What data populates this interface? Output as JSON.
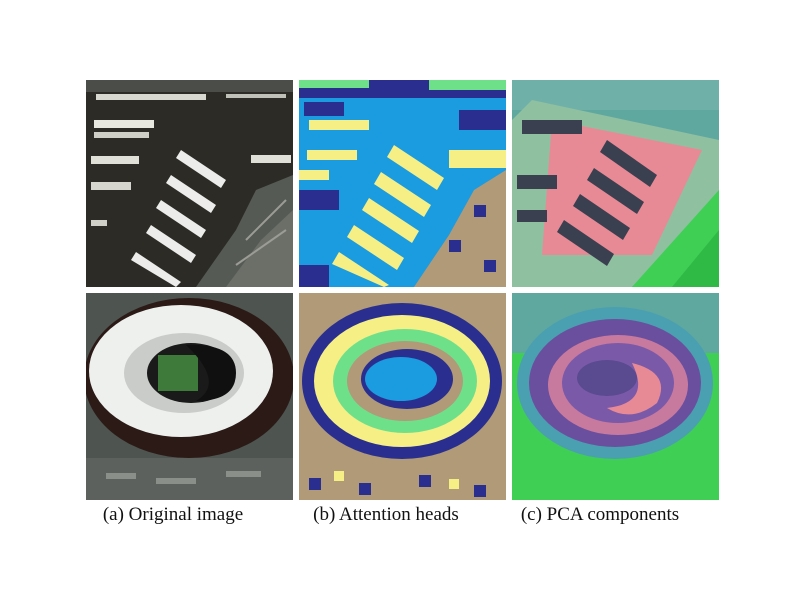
{
  "figure": {
    "captions": {
      "col_a": "(a) Original image",
      "col_b": "(b) Attention heads",
      "col_c": "(c) PCA components"
    },
    "rows": [
      {
        "content": "marina with docked boats",
        "panels": [
          "original-image",
          "attention-heads",
          "pca-components"
        ]
      },
      {
        "content": "oval stadium",
        "panels": [
          "original-image",
          "attention-heads",
          "pca-components"
        ]
      }
    ],
    "colors": {
      "water_dark": "#2c2b26",
      "attention_blue": "#1b9be0",
      "attention_navy": "#2a2f8f",
      "attention_green": "#6fe08a",
      "attention_yellow": "#f6ef86",
      "attention_tan": "#b09a78",
      "pca_pink": "#e88a95",
      "pca_teal": "#5fa8a0",
      "pca_green": "#3fcf55",
      "pca_purple": "#6a4f9e"
    }
  }
}
